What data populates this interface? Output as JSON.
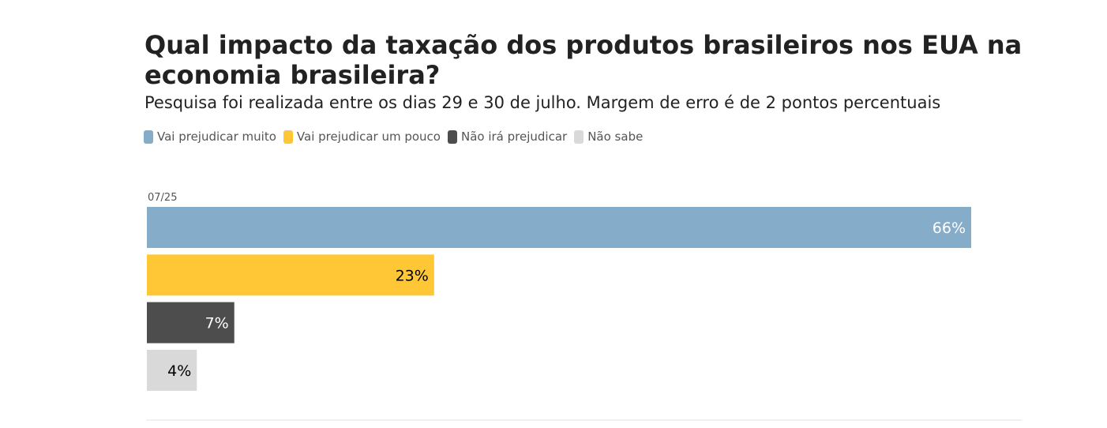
{
  "chart_data": {
    "type": "bar",
    "orientation": "horizontal",
    "title": "Qual impacto da taxação dos produtos brasileiros nos EUA na economia brasileira?",
    "subtitle": "Pesquisa foi realizada entre os dias 29 e 30 de julho. Margem de erro é de 2 pontos percentuais",
    "category": "07/25",
    "legend_position": "top-left",
    "grid": false,
    "xlim": [
      0,
      70
    ],
    "value_suffix": "%",
    "series": [
      {
        "name": "Vai prejudicar muito",
        "value": 66,
        "label": "66%",
        "color": "#85acc9",
        "label_color": "#ffffff"
      },
      {
        "name": "Vai prejudicar um pouco",
        "value": 23,
        "label": "23%",
        "color": "#ffc736",
        "label_color": "#000000"
      },
      {
        "name": "Não irá prejudicar",
        "value": 7,
        "label": "7%",
        "color": "#4d4d4d",
        "label_color": "#ffffff"
      },
      {
        "name": "Não sabe",
        "value": 4,
        "label": "4%",
        "color": "#d9d9d9",
        "label_color": "#000000"
      }
    ]
  }
}
